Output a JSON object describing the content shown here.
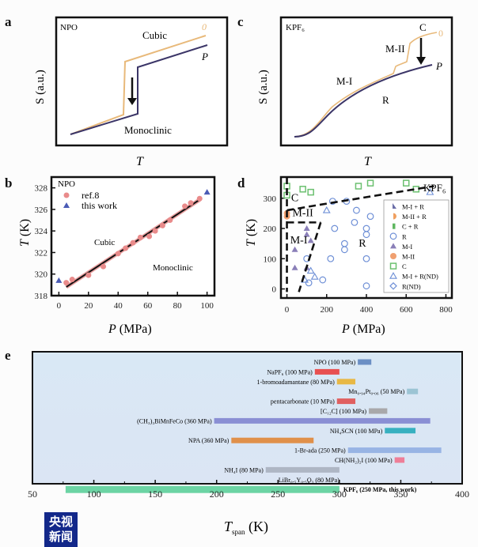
{
  "panels": {
    "a": {
      "letter": "a",
      "material": "NPO",
      "xlabel": "T",
      "ylabel": "S (a.u.)",
      "labels": {
        "upper_phase": "Cubic",
        "lower_phase": "Monoclinic",
        "curve_0": "0",
        "curve_p": "P"
      },
      "colors": {
        "curve_0": "#e8b97a",
        "curve_p": "#3b3567"
      }
    },
    "c": {
      "letter": "c",
      "material": "KPF₆",
      "xlabel": "T",
      "ylabel": "S (a.u.)",
      "labels": {
        "phase_c": "C",
        "phase_m2": "M-II",
        "phase_m1": "M-I",
        "phase_r": "R",
        "curve_0": "0",
        "curve_p": "P"
      },
      "colors": {
        "curve_0": "#e8b97a",
        "curve_p": "#3b3567"
      }
    }
  },
  "chart_data": [
    {
      "id": "b",
      "type": "scatter",
      "panel_letter": "b",
      "title": "NPO",
      "xlabel": "P (MPa)",
      "ylabel": "T (K)",
      "xlim": [
        -5,
        105
      ],
      "ylim": [
        318,
        329
      ],
      "xticks": [
        0,
        20,
        40,
        60,
        80,
        100
      ],
      "yticks": [
        318,
        320,
        322,
        324,
        326,
        328
      ],
      "annotations": {
        "upper": "Cubic",
        "lower": "Monoclinic"
      },
      "legend": {
        "position": "top-left",
        "entries": [
          {
            "label": "ref.8",
            "marker": "circle",
            "color": "#e98b8b"
          },
          {
            "label": "this work",
            "marker": "triangle",
            "color": "#4a5bb5"
          }
        ]
      },
      "series": [
        {
          "name": "ref.8",
          "points": [
            [
              5,
              319.2
            ],
            [
              9,
              319.5
            ],
            [
              20,
              319.9
            ],
            [
              30,
              320.7
            ],
            [
              40,
              321.9
            ],
            [
              45,
              322.4
            ],
            [
              50,
              322.9
            ],
            [
              55,
              323.4
            ],
            [
              61,
              323.5
            ],
            [
              65,
              324.0
            ],
            [
              70,
              324.5
            ],
            [
              75,
              325.0
            ],
            [
              85,
              326.3
            ],
            [
              89,
              326.6
            ],
            [
              95,
              327.0
            ]
          ]
        },
        {
          "name": "this work",
          "points": [
            [
              0,
              319.4
            ],
            [
              100,
              327.6
            ]
          ]
        },
        {
          "name": "fit",
          "line": [
            [
              5,
              318.8
            ],
            [
              95,
              326.9
            ]
          ]
        }
      ]
    },
    {
      "id": "d",
      "type": "scatter",
      "panel_letter": "d",
      "title": "KPF₆",
      "xlabel": "P (MPa)",
      "ylabel": "T (K)",
      "xlim": [
        -30,
        830
      ],
      "ylim": [
        -30,
        370
      ],
      "xticks": [
        0,
        200,
        400,
        600,
        800
      ],
      "yticks": [
        0,
        100,
        200,
        300
      ],
      "region_labels": [
        {
          "text": "C",
          "x": 40,
          "y": 290
        },
        {
          "text": "M-II",
          "x": 80,
          "y": 240
        },
        {
          "text": "M-I",
          "x": 60,
          "y": 150
        },
        {
          "text": "R",
          "x": 380,
          "y": 140
        }
      ],
      "legend": {
        "position": "right",
        "entries": [
          {
            "label": "M-I + R",
            "marker": "half-triangle",
            "color": "#6b6ea8"
          },
          {
            "label": "M-II + R",
            "marker": "half-circle",
            "color": "#f0a060"
          },
          {
            "label": "C + R",
            "marker": "half-square",
            "color": "#5fb760"
          },
          {
            "label": "R",
            "marker": "circle-open",
            "color": "#6e8fd6"
          },
          {
            "label": "M-I",
            "marker": "triangle",
            "color": "#8a7fb8"
          },
          {
            "label": "M-II",
            "marker": "circle",
            "color": "#f0a070"
          },
          {
            "label": "C",
            "marker": "square",
            "color": "#6cc070"
          },
          {
            "label": "M-I + R(ND)",
            "marker": "triangle-open",
            "color": "#6e8fd6"
          },
          {
            "label": "R(ND)",
            "marker": "diamond-open",
            "color": "#6e8fd6"
          }
        ]
      },
      "series": [
        {
          "name": "R",
          "points": [
            [
              230,
              290
            ],
            [
              300,
              290
            ],
            [
              350,
              260
            ],
            [
              420,
              240
            ],
            [
              240,
              200
            ],
            [
              340,
              220
            ],
            [
              400,
              200
            ],
            [
              400,
              180
            ],
            [
              290,
              150
            ],
            [
              290,
              130
            ],
            [
              100,
              100
            ],
            [
              220,
              100
            ],
            [
              400,
              100
            ],
            [
              180,
              30
            ],
            [
              400,
              10
            ],
            [
              110,
              20
            ]
          ]
        },
        {
          "name": "M-I",
          "points": [
            [
              100,
              200
            ],
            [
              100,
              180
            ],
            [
              120,
              160
            ],
            [
              40,
              130
            ],
            [
              40,
              70
            ],
            [
              100,
              70
            ]
          ]
        },
        {
          "name": "M-II",
          "points": [
            [
              0,
              250
            ],
            [
              0,
              240
            ]
          ]
        },
        {
          "name": "C",
          "points": [
            [
              0,
              340
            ],
            [
              0,
              310
            ],
            [
              80,
              330
            ],
            [
              120,
              320
            ],
            [
              360,
              340
            ],
            [
              420,
              350
            ],
            [
              600,
              350
            ],
            [
              650,
              330
            ]
          ]
        },
        {
          "name": "M-I + R(ND)",
          "points": [
            [
              120,
              60
            ],
            [
              90,
              30
            ],
            [
              140,
              40
            ],
            [
              200,
              260
            ],
            [
              720,
              320
            ]
          ]
        }
      ],
      "boundaries": [
        [
          [
            0,
            370
          ],
          [
            0,
            -10
          ]
        ],
        [
          [
            0,
            260
          ],
          [
            180,
            280
          ],
          [
            740,
            340
          ]
        ],
        [
          [
            0,
            220
          ],
          [
            170,
            220
          ]
        ],
        [
          [
            170,
            220
          ],
          [
            60,
            -10
          ]
        ]
      ]
    },
    {
      "id": "e",
      "type": "bar",
      "orientation": "horizontal-range",
      "panel_letter": "e",
      "xlabel": "T_span (K)",
      "xlim": [
        50,
        400
      ],
      "xticks": [
        50,
        100,
        150,
        200,
        250,
        300,
        350,
        400
      ],
      "bars": [
        {
          "label": "NPO (100 MPa)",
          "start": 315,
          "end": 326,
          "color": "#6b8fc4"
        },
        {
          "label": "NaPF₆ (100 MPa)",
          "start": 280,
          "end": 300,
          "color": "#e85050"
        },
        {
          "label": "1-bromoadamantane (80 MPa)",
          "start": 298,
          "end": 313,
          "color": "#e8b845"
        },
        {
          "label": "Mn₀.₉₄Pt₀.₀₆ (50 MPa)",
          "start": 355,
          "end": 364,
          "color": "#9cc4d4"
        },
        {
          "label": "pentacarbonate (10 MPa)",
          "start": 298,
          "end": 313,
          "color": "#e06060"
        },
        {
          "label": "[C₁₂C] (100 MPa)",
          "start": 324,
          "end": 339,
          "color": "#a8a8aa"
        },
        {
          "label": "(CH₃)₃BiMnFeCo (360 MPa)",
          "start": 198,
          "end": 374,
          "color": "#8a8fd4"
        },
        {
          "label": "NH₄SCN (100 MPa)",
          "start": 337,
          "end": 362,
          "color": "#38b0c0"
        },
        {
          "label": "NPA (360 MPa)",
          "start": 212,
          "end": 279,
          "color": "#e0904a"
        },
        {
          "label": "1-Br-ada (250 MPa)",
          "start": 307,
          "end": 383,
          "color": "#98b4e4"
        },
        {
          "label": "CH(NH₂)₂I (100 MPa)",
          "start": 345,
          "end": 353,
          "color": "#ee7e98"
        },
        {
          "label": "NH₄I (80 MPa)",
          "start": 240,
          "end": 300,
          "color": "#aeb6c4"
        },
        {
          "label": "LiBr₀.₅Y₀.₅O₃ (80 MPa)",
          "start": null,
          "end": null,
          "color": "#c0c4cc"
        },
        {
          "label": "KPF₆ (250 MPa, this work)",
          "start": 77,
          "end": 300,
          "color": "#6cd4a4"
        }
      ]
    }
  ],
  "watermark": {
    "line1": "央视",
    "line2": "新闻"
  }
}
